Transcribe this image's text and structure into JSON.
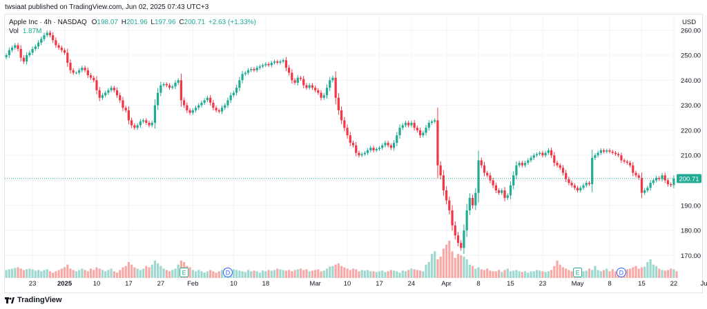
{
  "publisher_line": "twsiaat published on TradingView.com, Jun 02, 2025 07:43 UTC+3",
  "footer_brand": "TradingView",
  "colors": {
    "up": "#22ab94",
    "down": "#f23645",
    "up_vol": "#9fd8cf",
    "down_vol": "#f7a9a7",
    "last_price_bg": "#22ab94",
    "grid": "#f0f3fa"
  },
  "legend": {
    "symbol": "Apple Inc · 4h · NASDAQ",
    "o_label": "O",
    "o": "198.07",
    "h_label": "H",
    "h": "201.96",
    "l_label": "L",
    "l": "197.96",
    "c_label": "C",
    "c": "200.71",
    "change": "+2.63 (+1.33%)",
    "vol_label": "Vol",
    "vol": "1.87M"
  },
  "chart_data": {
    "type": "candlestick",
    "currency": "USD",
    "last_price": 200.71,
    "y_ticks": [
      170,
      180,
      190,
      200,
      210,
      220,
      230,
      240,
      250,
      260
    ],
    "y_tick_labels": [
      "170.00",
      "180.00",
      "190.00",
      "200.00",
      "210.00",
      "220.00",
      "230.00",
      "240.00",
      "250.00",
      "260.00"
    ],
    "ylim": [
      161,
      266
    ],
    "x_ticks": [
      {
        "label": "23",
        "bar": 9
      },
      {
        "label": "2025",
        "bar": 20,
        "bold": true
      },
      {
        "label": "10",
        "bar": 31
      },
      {
        "label": "17",
        "bar": 42
      },
      {
        "label": "27",
        "bar": 53
      },
      {
        "label": "Feb",
        "bar": 64
      },
      {
        "label": "10",
        "bar": 78
      },
      {
        "label": "18",
        "bar": 89
      },
      {
        "label": "Mar",
        "bar": 106
      },
      {
        "label": "10",
        "bar": 117
      },
      {
        "label": "17",
        "bar": 128
      },
      {
        "label": "24",
        "bar": 139
      },
      {
        "label": "Apr",
        "bar": 151
      },
      {
        "label": "8",
        "bar": 162
      },
      {
        "label": "15",
        "bar": 173
      },
      {
        "label": "23",
        "bar": 184
      },
      {
        "label": "May",
        "bar": 196
      },
      {
        "label": "8",
        "bar": 207
      },
      {
        "label": "15",
        "bar": 218
      },
      {
        "label": "22",
        "bar": 229
      },
      {
        "label": "Jun",
        "bar": 240
      }
    ],
    "events": [
      {
        "type": "E",
        "bar": 61
      },
      {
        "type": "D",
        "bar": 76
      },
      {
        "type": "E",
        "bar": 196
      },
      {
        "type": "D",
        "bar": 211
      }
    ],
    "closes": [
      250.0,
      252.0,
      253.0,
      254.0,
      252.5,
      249.0,
      247.5,
      250.0,
      251.0,
      252.5,
      253.5,
      255.0,
      256.5,
      258.0,
      259.0,
      258.0,
      256.0,
      254.0,
      253.0,
      252.0,
      251.0,
      247.0,
      244.0,
      243.0,
      243.0,
      244.0,
      245.0,
      244.0,
      242.0,
      241.0,
      240.0,
      236.0,
      233.0,
      234.0,
      235.0,
      236.0,
      237.0,
      236.0,
      234.0,
      232.0,
      229.0,
      228.0,
      224.0,
      222.0,
      221.0,
      222.0,
      223.5,
      224.0,
      223.0,
      222.0,
      223.0,
      230.0,
      235.0,
      238.0,
      238.5,
      238.0,
      237.0,
      237.5,
      239.0,
      240.0,
      232.0,
      230.0,
      228.0,
      227.0,
      228.0,
      229.0,
      230.0,
      231.0,
      232.0,
      233.0,
      231.0,
      229.0,
      228.0,
      227.5,
      229.0,
      230.0,
      232.0,
      234.0,
      235.0,
      237.0,
      240.0,
      242.5,
      243.0,
      244.0,
      244.5,
      244.0,
      245.0,
      245.5,
      246.0,
      246.5,
      246.0,
      247.0,
      247.5,
      247.0,
      247.5,
      248.0,
      245.0,
      243.0,
      240.0,
      239.0,
      241.0,
      240.5,
      238.0,
      237.0,
      238.0,
      237.0,
      236.0,
      235.0,
      233.0,
      234.0,
      237.0,
      240.0,
      241.0,
      233.0,
      228.0,
      224.0,
      221.0,
      218.0,
      215.0,
      214.0,
      211.0,
      210.0,
      210.5,
      211.0,
      212.0,
      213.0,
      212.0,
      212.5,
      213.0,
      214.0,
      215.0,
      214.0,
      213.0,
      215.0,
      218.0,
      221.0,
      222.0,
      223.0,
      222.0,
      223.0,
      221.0,
      220.0,
      218.0,
      219.0,
      221.0,
      223.0,
      223.5,
      224.0,
      206.0,
      202.0,
      196.0,
      192.0,
      188.0,
      182.0,
      178.0,
      175.0,
      173.0,
      180.0,
      188.0,
      193.0,
      190.0,
      195.0,
      208.0,
      206.0,
      203.0,
      202.0,
      200.0,
      198.0,
      196.0,
      195.0,
      196.0,
      193.0,
      194.0,
      198.0,
      202.0,
      206.0,
      207.0,
      206.0,
      207.0,
      208.0,
      209.0,
      210.0,
      210.5,
      211.0,
      210.0,
      211.0,
      212.0,
      210.0,
      207.0,
      206.0,
      205.0,
      203.0,
      200.5,
      199.0,
      198.0,
      197.0,
      196.0,
      197.0,
      198.0,
      199.0,
      198.5,
      209.0,
      210.0,
      211.0,
      212.0,
      211.5,
      212.0,
      211.5,
      211.0,
      210.5,
      210.0,
      208.0,
      207.5,
      207.0,
      206.0,
      203.0,
      202.0,
      201.0,
      195.0,
      196.0,
      197.0,
      199.0,
      200.0,
      201.0,
      200.5,
      202.0,
      200.0,
      198.5,
      198.07,
      200.71
    ],
    "volume": {
      "ylim": [
        0,
        30
      ],
      "values": [
        6,
        6.5,
        7,
        7.5,
        8,
        7,
        6,
        6.5,
        7,
        6.5,
        5.5,
        6,
        5,
        6,
        6.5,
        5,
        4,
        5,
        6,
        7,
        8,
        10,
        7,
        6,
        5,
        6,
        7,
        6,
        5,
        7,
        6,
        8,
        7,
        6,
        5,
        6,
        7,
        5,
        4,
        6,
        8,
        9,
        12,
        10,
        8,
        7,
        6,
        7,
        9,
        8,
        10,
        13,
        11,
        9,
        7,
        6,
        5,
        6,
        7,
        10,
        13,
        12,
        9,
        8,
        6,
        5,
        6,
        5,
        4,
        5,
        6,
        5,
        4,
        5,
        6,
        7,
        5,
        6,
        6.5,
        6,
        5.5,
        5,
        4.5,
        6,
        5,
        5.5,
        5,
        4,
        5.5,
        5,
        6,
        5.5,
        6,
        7,
        6.5,
        6,
        5.5,
        6,
        5,
        6,
        6.5,
        7,
        6,
        6.5,
        5,
        5.5,
        6,
        6.5,
        5,
        5.5,
        7,
        8.5,
        9,
        10,
        11,
        9,
        8,
        7,
        6,
        7,
        6.5,
        5,
        6,
        5.5,
        6,
        5,
        5,
        4.5,
        5,
        5.5,
        4.5,
        5,
        6,
        5.5,
        5,
        4,
        5.5,
        5,
        6,
        7,
        6.5,
        6,
        5.5,
        5,
        10,
        12,
        18,
        20,
        14,
        16,
        22,
        25,
        28,
        20,
        15,
        18,
        17,
        16,
        14,
        10,
        9,
        7,
        8,
        6.5,
        6,
        7,
        5.5,
        5,
        5,
        6,
        4.5,
        6,
        7,
        5,
        5.5,
        6,
        5,
        4.5,
        5,
        4,
        5,
        5,
        6,
        5.5,
        5,
        4.5,
        5,
        6,
        9,
        13,
        10,
        8,
        7,
        6,
        5,
        6,
        7,
        6.5,
        5,
        5.5,
        7,
        6,
        9,
        6,
        5,
        6,
        7,
        5,
        6.5,
        5,
        5.5,
        6,
        5,
        6.5,
        7,
        8,
        9,
        7,
        8,
        8.5,
        12,
        14,
        10,
        9,
        7,
        6,
        5.5,
        6,
        7,
        6.5,
        5
      ]
    }
  }
}
